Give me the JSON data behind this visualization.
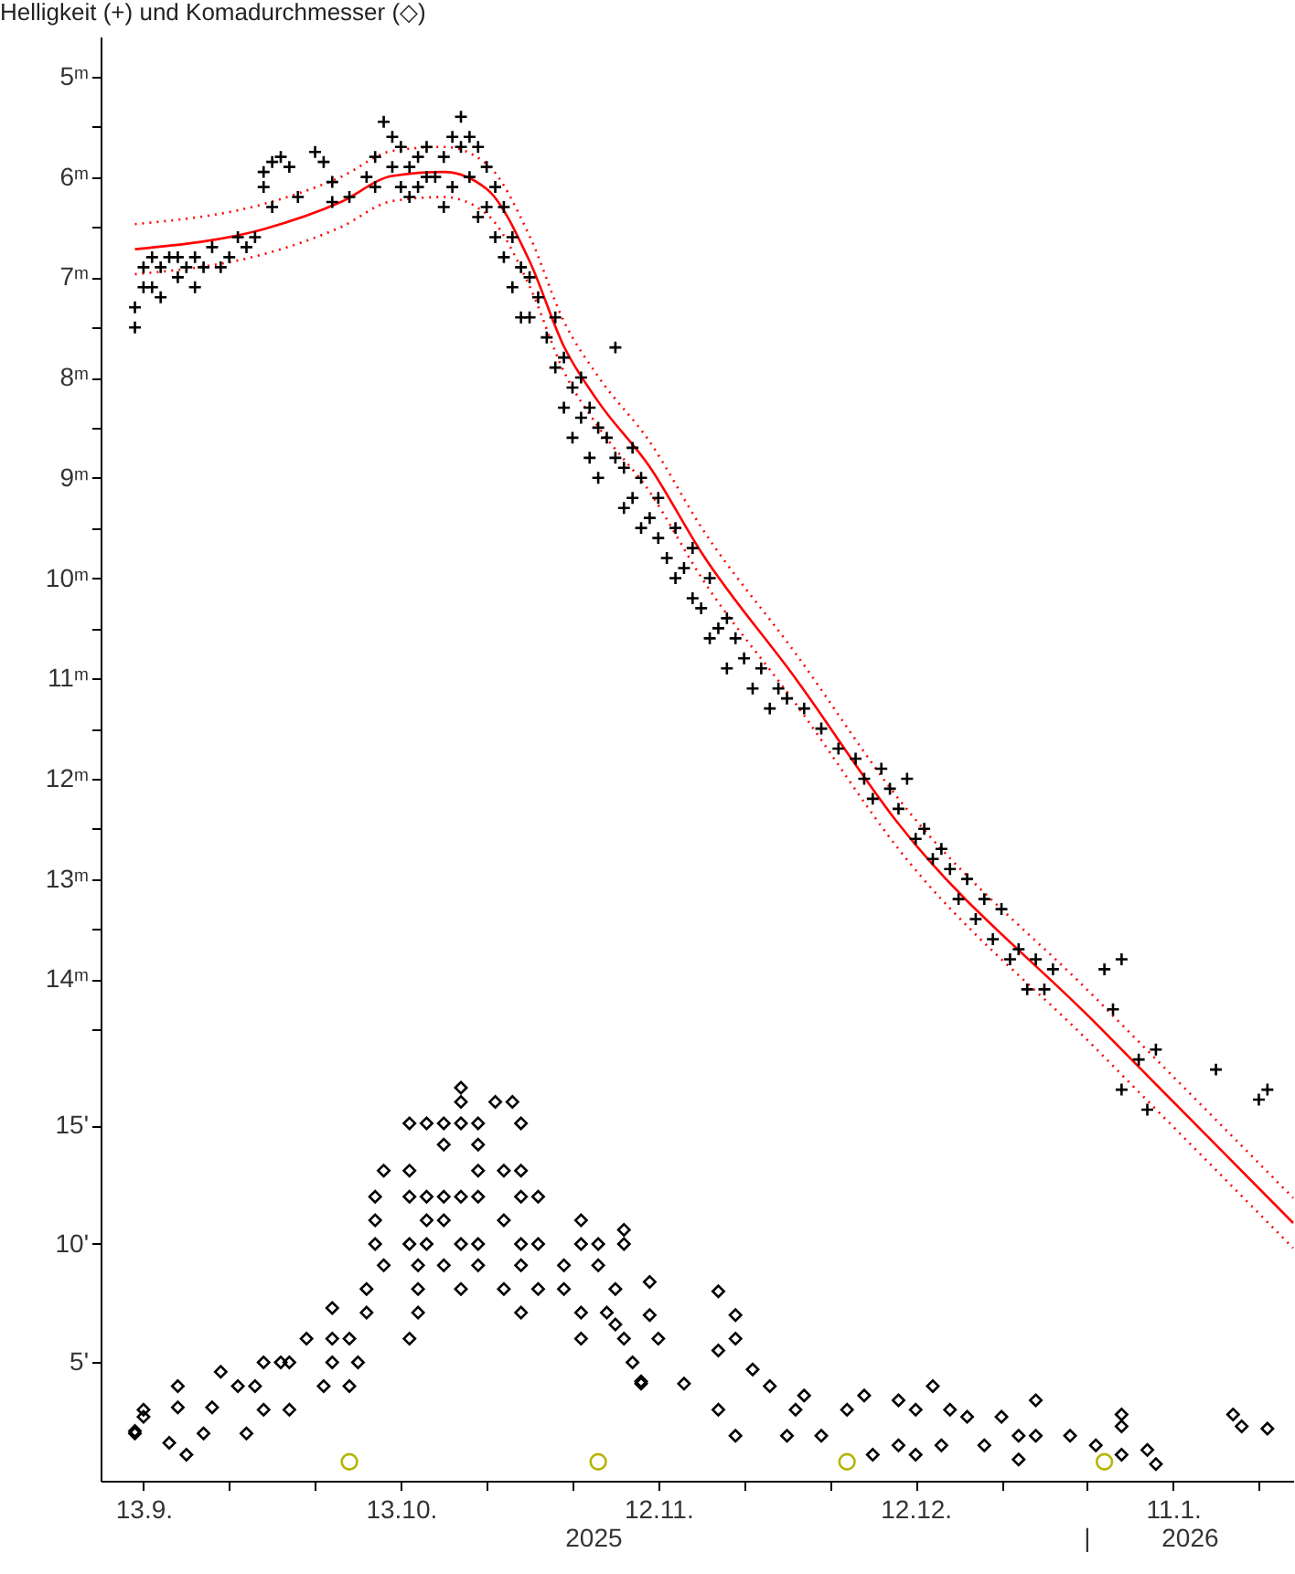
{
  "chart_data": {
    "type": "scatter",
    "title": "Helligkeit (+) und Komadurchmesser (◇)",
    "xlim": [
      "2025-09-08",
      "2026-01-25"
    ],
    "xticks": [
      {
        "value": "2025-09-13",
        "label": "13.9."
      },
      {
        "value": "2025-09-23",
        "label": null
      },
      {
        "value": "2025-10-03",
        "label": null
      },
      {
        "value": "2025-10-13",
        "label": "13.10."
      },
      {
        "value": "2025-10-23",
        "label": null
      },
      {
        "value": "2025-11-02",
        "label": null
      },
      {
        "value": "2025-11-12",
        "label": "12.11."
      },
      {
        "value": "2025-11-22",
        "label": null
      },
      {
        "value": "2025-12-02",
        "label": null
      },
      {
        "value": "2025-12-12",
        "label": "12.12."
      },
      {
        "value": "2025-12-22",
        "label": null
      },
      {
        "value": "2026-01-01",
        "label": null
      },
      {
        "value": "2026-01-11",
        "label": "11.1."
      },
      {
        "value": "2026-01-21",
        "label": null
      }
    ],
    "ylim": [
      19,
      4.6
    ],
    "yticks": [
      {
        "value": 5,
        "label": "5ᵐ"
      },
      {
        "value": 5.5,
        "label": null
      },
      {
        "value": 6,
        "label": "6ᵐ"
      },
      {
        "value": 6.5,
        "label": null
      },
      {
        "value": 7,
        "label": "7ᵐ"
      },
      {
        "value": 7.5,
        "label": null
      },
      {
        "value": 8,
        "label": "8ᵐ"
      },
      {
        "value": 8.5,
        "label": null
      },
      {
        "value": 9,
        "label": "9ᵐ"
      },
      {
        "value": 9.5,
        "label": null
      },
      {
        "value": 10,
        "label": "10ᵐ"
      },
      {
        "value": 10.5,
        "label": null
      },
      {
        "value": 11,
        "label": "11ᵐ"
      },
      {
        "value": 11.5,
        "label": null
      },
      {
        "value": 12,
        "label": "12ᵐ"
      },
      {
        "value": 12.5,
        "label": null
      },
      {
        "value": 13,
        "label": "13ᵐ"
      },
      {
        "value": 13.5,
        "label": null
      },
      {
        "value": 14,
        "label": "14ᵐ"
      },
      {
        "value": 14.5,
        "label": null
      }
    ],
    "y2lim": [
      0,
      61
    ],
    "y2ticks": [
      {
        "value": 5,
        "label": "5'"
      },
      {
        "value": 10,
        "label": "10'"
      },
      {
        "value": 15,
        "label": "15'"
      }
    ],
    "annotations": [
      "2025",
      "|",
      "2026"
    ],
    "series": [
      {
        "type": "scatter",
        "marker": "cross",
        "color": "#000000",
        "x": [
          "2025-09-12",
          "2025-09-12",
          "2025-09-13",
          "2025-09-13",
          "2025-09-14",
          "2025-09-14",
          "2025-09-15",
          "2025-09-15",
          "2025-09-16",
          "2025-09-17",
          "2025-09-17",
          "2025-09-18",
          "2025-09-19",
          "2025-09-19",
          "2025-09-20",
          "2025-09-21",
          "2025-09-22",
          "2025-09-23",
          "2025-09-24",
          "2025-09-25",
          "2025-09-26",
          "2025-09-27",
          "2025-09-27",
          "2025-09-28",
          "2025-09-29",
          "2025-09-30",
          "2025-09-28",
          "2025-10-01",
          "2025-10-03",
          "2025-10-04",
          "2025-10-05",
          "2025-10-05",
          "2025-10-07",
          "2025-10-09",
          "2025-10-10",
          "2025-10-10",
          "2025-10-11",
          "2025-10-12",
          "2025-10-12",
          "2025-10-13",
          "2025-10-13",
          "2025-10-14",
          "2025-10-14",
          "2025-10-15",
          "2025-10-15",
          "2025-10-16",
          "2025-10-16",
          "2025-10-17",
          "2025-10-18",
          "2025-10-18",
          "2025-10-19",
          "2025-10-19",
          "2025-10-20",
          "2025-10-20",
          "2025-10-21",
          "2025-10-21",
          "2025-10-22",
          "2025-10-22",
          "2025-10-23",
          "2025-10-23",
          "2025-10-24",
          "2025-10-24",
          "2025-10-25",
          "2025-10-25",
          "2025-10-26",
          "2025-10-26",
          "2025-10-27",
          "2025-10-27",
          "2025-10-28",
          "2025-10-28",
          "2025-10-29",
          "2025-10-30",
          "2025-10-31",
          "2025-10-31",
          "2025-11-01",
          "2025-11-01",
          "2025-11-02",
          "2025-11-02",
          "2025-11-03",
          "2025-11-03",
          "2025-11-04",
          "2025-11-04",
          "2025-11-05",
          "2025-11-05",
          "2025-11-06",
          "2025-11-07",
          "2025-11-07",
          "2025-11-08",
          "2025-11-08",
          "2025-11-09",
          "2025-11-09",
          "2025-11-10",
          "2025-11-10",
          "2025-11-11",
          "2025-11-12",
          "2025-11-12",
          "2025-11-13",
          "2025-11-14",
          "2025-11-14",
          "2025-11-15",
          "2025-11-16",
          "2025-11-16",
          "2025-11-17",
          "2025-11-18",
          "2025-11-18",
          "2025-11-19",
          "2025-11-20",
          "2025-11-20",
          "2025-11-21",
          "2025-11-22",
          "2025-11-23",
          "2025-11-24",
          "2025-11-25",
          "2025-11-26",
          "2025-11-27",
          "2025-11-29",
          "2025-12-01",
          "2025-12-03",
          "2025-12-05",
          "2025-12-06",
          "2025-12-07",
          "2025-12-08",
          "2025-12-09",
          "2025-12-10",
          "2025-12-11",
          "2025-12-12",
          "2025-12-13",
          "2025-12-14",
          "2025-12-15",
          "2025-12-16",
          "2025-12-17",
          "2025-12-18",
          "2025-12-19",
          "2025-12-20",
          "2025-12-21",
          "2025-12-22",
          "2025-12-23",
          "2025-12-24",
          "2025-12-25",
          "2025-12-26",
          "2025-12-27",
          "2025-12-28",
          "2026-01-03",
          "2026-01-05",
          "2026-01-04",
          "2026-01-09",
          "2026-01-07",
          "2026-01-05",
          "2026-01-08",
          "2026-01-16",
          "2026-01-21",
          "2026-01-22"
        ],
        "values": [
          7.5,
          7.3,
          7.1,
          6.9,
          6.8,
          7.1,
          6.9,
          7.2,
          6.8,
          7.0,
          6.8,
          6.9,
          7.1,
          6.8,
          6.9,
          6.7,
          6.9,
          6.8,
          6.6,
          6.7,
          6.6,
          6.1,
          5.95,
          5.85,
          5.8,
          5.9,
          6.3,
          6.2,
          5.75,
          5.85,
          6.05,
          6.25,
          6.2,
          6.0,
          5.8,
          6.1,
          5.45,
          5.6,
          5.9,
          5.7,
          6.1,
          5.9,
          6.2,
          5.8,
          6.1,
          5.7,
          6.0,
          6.0,
          5.8,
          6.3,
          5.6,
          6.1,
          5.4,
          5.7,
          5.6,
          6.0,
          5.7,
          6.4,
          5.9,
          6.3,
          6.1,
          6.6,
          6.3,
          6.8,
          6.6,
          7.1,
          6.9,
          7.4,
          7.0,
          7.4,
          7.2,
          7.6,
          7.4,
          7.9,
          7.8,
          8.3,
          8.1,
          8.6,
          8.0,
          8.4,
          8.3,
          8.8,
          8.5,
          9.0,
          8.6,
          7.7,
          8.8,
          8.9,
          9.3,
          8.7,
          9.2,
          9.0,
          9.5,
          9.4,
          9.6,
          9.2,
          9.8,
          9.5,
          10.0,
          9.9,
          10.2,
          9.7,
          10.3,
          10.0,
          10.6,
          10.5,
          10.4,
          10.9,
          10.6,
          10.8,
          11.1,
          10.9,
          11.3,
          11.1,
          11.2,
          11.3,
          11.5,
          11.7,
          11.8,
          12.0,
          12.2,
          11.9,
          12.1,
          12.3,
          12.0,
          12.6,
          12.5,
          12.8,
          12.7,
          12.9,
          13.2,
          13.0,
          13.4,
          13.2,
          13.6,
          13.3,
          13.8,
          13.7,
          14.1,
          13.8,
          14.1,
          13.9,
          13.9,
          13.8,
          14.3,
          14.7,
          14.8,
          15.1,
          15.3,
          14.9,
          15.2,
          15.1
        ]
      },
      {
        "type": "line",
        "color": "#ff0000",
        "line_style": "solid",
        "x": [
          "2025-09-12",
          "2025-09-27",
          "2025-10-06",
          "2025-10-12",
          "2025-10-18",
          "2025-10-23",
          "2025-10-28",
          "2025-11-01",
          "2025-11-05",
          "2025-11-11",
          "2025-11-17",
          "2025-11-28",
          "2025-12-10",
          "2026-01-02",
          "2026-01-25"
        ],
        "values": [
          6.72,
          6.52,
          6.25,
          5.99,
          5.95,
          6.12,
          6.84,
          7.69,
          8.24,
          8.89,
          9.74,
          11.0,
          12.45,
          14.44,
          16.43
        ]
      },
      {
        "type": "line",
        "color": "#ff0000",
        "line_style": "dotted",
        "x": [
          "2025-09-12",
          "2025-09-27",
          "2025-10-06",
          "2025-10-12",
          "2025-10-18",
          "2025-10-23",
          "2025-10-28",
          "2025-11-01",
          "2025-11-05",
          "2025-11-11",
          "2025-11-17",
          "2025-11-28",
          "2025-12-10",
          "2026-01-02",
          "2026-01-25"
        ],
        "values": [
          6.47,
          6.27,
          6.0,
          5.74,
          5.7,
          5.87,
          6.59,
          7.44,
          7.99,
          8.64,
          9.49,
          10.75,
          12.2,
          14.19,
          16.18
        ]
      },
      {
        "type": "line",
        "color": "#ff0000",
        "line_style": "dotted",
        "x": [
          "2025-09-12",
          "2025-09-27",
          "2025-10-06",
          "2025-10-12",
          "2025-10-18",
          "2025-10-23",
          "2025-10-28",
          "2025-11-01",
          "2025-11-05",
          "2025-11-11",
          "2025-11-17",
          "2025-11-28",
          "2025-12-10",
          "2026-01-02",
          "2026-01-25"
        ],
        "values": [
          6.97,
          6.77,
          6.5,
          6.24,
          6.2,
          6.37,
          7.09,
          7.94,
          8.49,
          9.14,
          9.99,
          11.25,
          12.7,
          14.69,
          16.68
        ]
      },
      {
        "type": "scatter",
        "axis": "y2",
        "marker": "diamond",
        "color": "#000000",
        "x": [
          "2025-09-12",
          "2025-09-12",
          "2025-09-13",
          "2025-09-16",
          "2025-09-13",
          "2025-09-17",
          "2025-09-18",
          "2025-09-17",
          "2025-09-20",
          "2025-09-21",
          "2025-09-22",
          "2025-09-24",
          "2025-09-25",
          "2025-09-26",
          "2025-09-27",
          "2025-09-27",
          "2025-09-30",
          "2025-09-29",
          "2025-09-30",
          "2025-10-02",
          "2025-10-05",
          "2025-10-05",
          "2025-10-05",
          "2025-10-04",
          "2025-10-07",
          "2025-10-07",
          "2025-10-08",
          "2025-10-09",
          "2025-10-09",
          "2025-10-11",
          "2025-10-10",
          "2025-10-10",
          "2025-10-10",
          "2025-10-11",
          "2025-10-14",
          "2025-10-14",
          "2025-10-14",
          "2025-10-14",
          "2025-10-14",
          "2025-10-15",
          "2025-10-15",
          "2025-10-16",
          "2025-10-16",
          "2025-10-16",
          "2025-10-16",
          "2025-10-15",
          "2025-10-18",
          "2025-10-18",
          "2025-10-18",
          "2025-10-18",
          "2025-10-18",
          "2025-10-20",
          "2025-10-20",
          "2025-10-20",
          "2025-10-20",
          "2025-10-20",
          "2025-10-20",
          "2025-10-22",
          "2025-10-22",
          "2025-10-22",
          "2025-10-22",
          "2025-10-22",
          "2025-10-22",
          "2025-10-24",
          "2025-10-26",
          "2025-10-25",
          "2025-10-25",
          "2025-10-25",
          "2025-10-27",
          "2025-10-27",
          "2025-10-27",
          "2025-10-27",
          "2025-10-27",
          "2025-10-27",
          "2025-10-29",
          "2025-10-29",
          "2025-10-29",
          "2025-11-01",
          "2025-11-01",
          "2025-11-03",
          "2025-11-03",
          "2025-11-03",
          "2025-11-03",
          "2025-11-05",
          "2025-11-05",
          "2025-11-08",
          "2025-11-08",
          "2025-11-07",
          "2025-11-07",
          "2025-11-06",
          "2025-11-08",
          "2025-11-10",
          "2025-11-09",
          "2025-11-11",
          "2025-11-11",
          "2025-11-12",
          "2025-11-10",
          "2025-11-15",
          "2025-11-19",
          "2025-11-21",
          "2025-11-19",
          "2025-11-19",
          "2025-11-21",
          "2025-11-21",
          "2025-11-23",
          "2025-11-25",
          "2025-11-27",
          "2025-11-28",
          "2025-11-29",
          "2025-12-01",
          "2025-12-04",
          "2025-12-06",
          "2025-12-07",
          "2025-12-10",
          "2025-12-10",
          "2025-12-12",
          "2025-12-12",
          "2025-12-14",
          "2025-12-15",
          "2025-12-16",
          "2025-12-18",
          "2025-12-20",
          "2025-12-22",
          "2025-12-24",
          "2025-12-24",
          "2025-12-26",
          "2025-12-26",
          "2025-12-30",
          "2026-01-02",
          "2026-01-05",
          "2026-01-05",
          "2026-01-05",
          "2026-01-08",
          "2026-01-09",
          "2026-01-18",
          "2026-01-19",
          "2026-01-22"
        ],
        "values": [
          2.0,
          2.1,
          2.7,
          1.6,
          3.0,
          3.1,
          1.1,
          4.0,
          2.0,
          3.1,
          4.6,
          4.0,
          2.0,
          4.0,
          5.0,
          3.0,
          3.0,
          5.0,
          5.0,
          6.0,
          7.3,
          5.0,
          6.0,
          4.0,
          4.0,
          6.0,
          5.0,
          7.1,
          8.1,
          13.1,
          12,
          11,
          10,
          9.1,
          6.0,
          15.1,
          13.1,
          12,
          10,
          7.1,
          9.1,
          15.1,
          12,
          11,
          10,
          8.1,
          14.2,
          15.1,
          12,
          9.1,
          11,
          16.6,
          16.0,
          15.1,
          12,
          10,
          8.1,
          14.2,
          15.1,
          13.1,
          12,
          10,
          9.1,
          16.0,
          16.0,
          13.1,
          11,
          8.1,
          15.1,
          13.1,
          12,
          10,
          9.1,
          7.1,
          12,
          10,
          8.1,
          9.1,
          8.1,
          11,
          10,
          6.0,
          7.1,
          10,
          9.1,
          10.6,
          10,
          8.1,
          6.6,
          7.1,
          6.0,
          4.1,
          5.0,
          8.4,
          7.0,
          6.0,
          4.2,
          4.1,
          8.0,
          7.0,
          5.5,
          3.0,
          1.9,
          6.0,
          4.7,
          4.0,
          1.9,
          3.0,
          3.6,
          1.9,
          3.0,
          3.6,
          1.1,
          1.5,
          3.4,
          3.0,
          1.1,
          4.0,
          1.5,
          3.0,
          2.7,
          1.5,
          2.7,
          1.9,
          0.9,
          3.4,
          1.9,
          1.9,
          1.5,
          2.8,
          2.3,
          1.1,
          1.3,
          0.7,
          2.8,
          2.3,
          2.2
        ]
      },
      {
        "type": "scatter",
        "axis": "y2",
        "marker": "circle",
        "color": "#b4b400",
        "x": [
          "2025-10-07",
          "2025-11-05",
          "2025-12-04",
          "2026-01-03"
        ],
        "values": [
          0.8,
          0.8,
          0.8,
          0.8
        ]
      }
    ]
  }
}
